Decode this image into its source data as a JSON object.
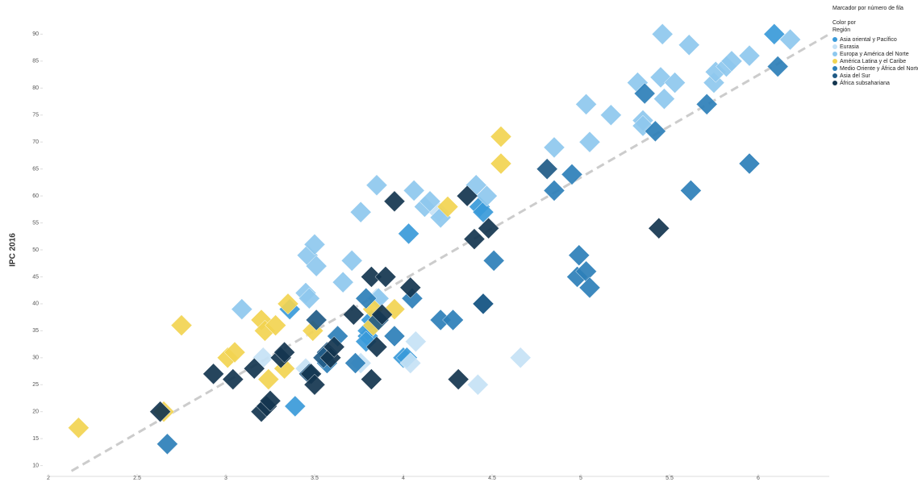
{
  "chart_data": {
    "type": "scatter",
    "y_label": "IPC 2016",
    "legend_titles": [
      "Marcador por número de fila",
      "Color por",
      "Región"
    ],
    "legend": "right",
    "marker": "diamond",
    "xlim": [
      2,
      6.4
    ],
    "xticks": [
      2,
      2.5,
      3,
      3.5,
      4,
      4.5,
      5,
      5.5,
      6
    ],
    "ylim": [
      8,
      92
    ],
    "yticks": [
      10,
      15,
      20,
      25,
      30,
      35,
      40,
      45,
      50,
      55,
      60,
      65,
      70,
      75,
      80,
      85,
      90
    ],
    "grid": false,
    "trendline": {
      "color": "#cccccc",
      "x": [
        2.13,
        6.4
      ],
      "y": [
        9,
        90
      ]
    },
    "series": [
      {
        "name": "Asia oriental y Pacífico",
        "color": "#3a9ad9",
        "x": [
          3.36,
          3.39,
          3.8,
          3.8,
          3.82,
          4.0,
          4.03,
          4.43,
          4.45,
          6.09,
          3.79,
          4.02
        ],
        "y": [
          39,
          21,
          34,
          35,
          37,
          30,
          53,
          58,
          57,
          90,
          33,
          30
        ]
      },
      {
        "name": "Eurasia",
        "color": "#c6e2f5",
        "x": [
          3.21,
          3.45,
          3.76,
          4.04,
          4.07,
          4.2,
          4.42,
          4.66,
          3.85
        ],
        "y": [
          30,
          28,
          29,
          29,
          33,
          57,
          25,
          30,
          41
        ]
      },
      {
        "name": "Europa y América del Norte",
        "color": "#8ec8ee",
        "x": [
          3.09,
          3.46,
          3.5,
          3.51,
          3.45,
          3.47,
          3.71,
          3.66,
          3.76,
          3.85,
          3.86,
          4.06,
          4.12,
          4.15,
          4.21,
          4.41,
          4.85,
          5.03,
          5.05,
          5.17,
          5.32,
          5.35,
          5.35,
          5.45,
          5.46,
          5.47,
          5.53,
          5.61,
          5.75,
          5.76,
          5.82,
          5.85,
          5.95,
          6.18,
          4.47
        ],
        "y": [
          39,
          49,
          51,
          47,
          42,
          41,
          48,
          44,
          57,
          62,
          41,
          61,
          58,
          59,
          56,
          62,
          69,
          77,
          70,
          75,
          81,
          74,
          73,
          82,
          90,
          78,
          81,
          88,
          81,
          83,
          84,
          85,
          86,
          89,
          60
        ]
      },
      {
        "name": "América Latina y el Caribe",
        "color": "#f2d451",
        "x": [
          2.17,
          2.75,
          2.65,
          3.01,
          3.05,
          3.2,
          3.22,
          3.28,
          3.24,
          3.33,
          3.35,
          3.49,
          3.83,
          3.95,
          4.25,
          4.55,
          4.55,
          3.83
        ],
        "y": [
          17,
          36,
          20,
          30,
          31,
          37,
          35,
          36,
          26,
          28,
          40,
          35,
          39,
          39,
          58,
          66,
          71,
          36
        ]
      },
      {
        "name": "Medio Oriente y África del Norte",
        "color": "#2d7fb8",
        "x": [
          2.67,
          3.63,
          3.57,
          3.73,
          3.95,
          4.05,
          4.21,
          4.28,
          4.51,
          4.98,
          4.99,
          5.03,
          5.05,
          4.95,
          4.85,
          5.71,
          5.42,
          5.36,
          5.62,
          5.95,
          6.11,
          3.79,
          4.45
        ],
        "y": [
          14,
          34,
          29,
          29,
          34,
          41,
          37,
          37,
          48,
          45,
          49,
          46,
          43,
          64,
          61,
          77,
          72,
          79,
          61,
          66,
          84,
          41,
          40
        ]
      },
      {
        "name": "Asia del Sur",
        "color": "#1f5a85",
        "x": [
          3.51,
          3.57,
          3.55,
          4.45,
          4.81,
          3.47,
          3.86
        ],
        "y": [
          37,
          31,
          30,
          40,
          65,
          27,
          37
        ]
      },
      {
        "name": "África subsahariana",
        "color": "#13354f",
        "x": [
          2.93,
          3.04,
          3.16,
          2.63,
          3.2,
          3.23,
          3.25,
          3.31,
          3.33,
          3.48,
          3.5,
          3.59,
          3.61,
          3.72,
          3.82,
          3.9,
          3.85,
          3.82,
          3.95,
          4.04,
          4.31,
          4.36,
          4.4,
          4.48,
          5.44,
          3.88
        ],
        "y": [
          27,
          26,
          28,
          20,
          20,
          21,
          22,
          30,
          31,
          27,
          25,
          30,
          32,
          38,
          45,
          45,
          32,
          26,
          59,
          43,
          26,
          60,
          52,
          54,
          54,
          38
        ]
      }
    ]
  }
}
